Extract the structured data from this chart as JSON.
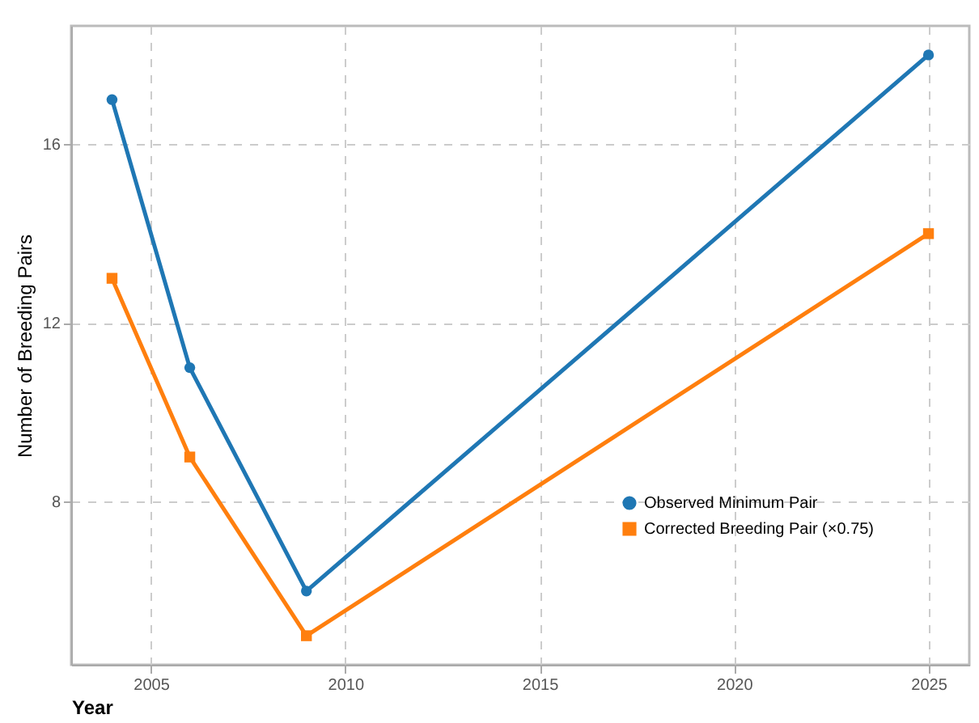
{
  "chart_data": {
    "type": "line",
    "xlabel": "Year",
    "ylabel": "Number of Breeding Pairs",
    "x": [
      2004,
      2006,
      2009,
      2025
    ],
    "series": [
      {
        "name": "Observed Minimum Pair",
        "color": "#1f77b4",
        "marker": "circle",
        "values": [
          17,
          11,
          6,
          18
        ]
      },
      {
        "name": "Corrected Breeding Pair (×0.75)",
        "color": "#ff7f0e",
        "marker": "square",
        "values": [
          13,
          9,
          5,
          14
        ]
      }
    ],
    "xlim": [
      2002.95,
      2026.05
    ],
    "xticks": [
      2005,
      2010,
      2015,
      2020,
      2025
    ],
    "ylim": [
      4.35,
      18.65
    ],
    "yticks": [
      8,
      12,
      16
    ],
    "grid": true,
    "legend": "right",
    "line_style": "solid"
  }
}
